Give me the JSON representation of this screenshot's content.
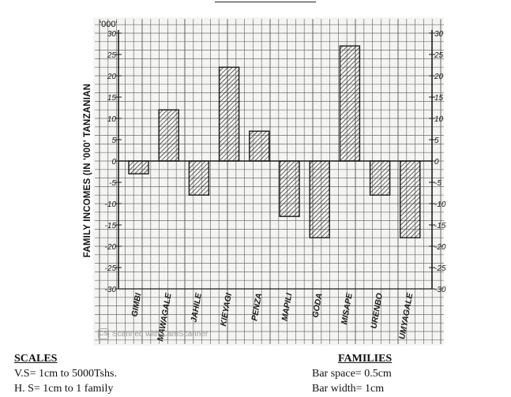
{
  "chart_data": {
    "type": "bar",
    "categories": [
      "GIMBI",
      "MAWAGALE",
      "JAHILE",
      "KIEYAGI",
      "PENZA",
      "MAPILI",
      "GODA",
      "MISAPE",
      "URENBO",
      "UMYAGALE"
    ],
    "values": [
      -3,
      12,
      -8,
      22,
      7,
      -13,
      -18,
      27,
      -8,
      -18
    ],
    "ylabel": "FAMILY INCOMES (IN '000' TANZANIAN",
    "unit_marker": "'000'",
    "ylim": [
      -30,
      30
    ],
    "yticks": [
      30,
      25,
      20,
      15,
      10,
      5,
      0,
      -5,
      -10,
      -15,
      -20,
      -25,
      -30
    ],
    "grid": true,
    "bar_style": "hatched"
  },
  "notes": {
    "scales_heading": "SCALES",
    "scales_lines": [
      "V.S= 1cm to 5000Tshs.",
      "H. S= 1cm to 1 family"
    ],
    "families_heading": "FAMILIES",
    "families_lines": [
      "Bar space= 0.5cm",
      "Bar width= 1cm"
    ]
  },
  "watermark": {
    "text": "Scanned with CamScanner",
    "icon": "camscanner-icon"
  },
  "colors": {
    "ink": "#1a1a1a",
    "grid": "#5a5a5a",
    "paper": "#f4f4f2"
  }
}
